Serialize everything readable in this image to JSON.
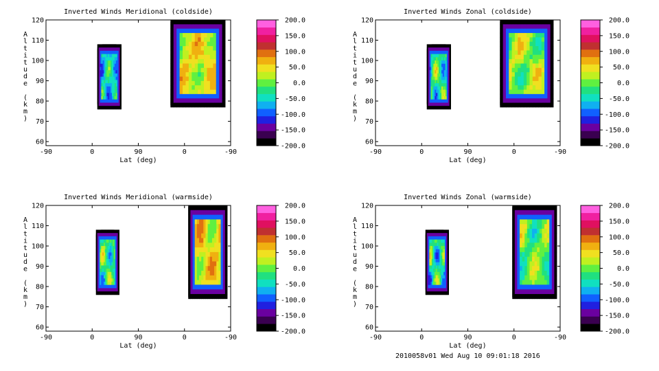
{
  "chart_data": [
    {
      "type": "heatmap",
      "title": "Inverted Winds Meridional (coldside)",
      "xlabel": "Lat (deg)",
      "ylabel": "Altitude (km)",
      "x_tick_labels": [
        "-90",
        "0",
        "90",
        "0",
        "-90"
      ],
      "ylim": [
        58,
        120
      ],
      "y_ticks": [
        60,
        70,
        80,
        90,
        100,
        110,
        120
      ],
      "colorbar_ticks": [
        200,
        150,
        100,
        50,
        0,
        -50,
        -100,
        -150,
        -200
      ],
      "colorbar_labels": [
        "200.0",
        "150.0",
        "100.0",
        "50.0",
        "0.0",
        "-50.0",
        "-100.0",
        "-150.0",
        "-200.0"
      ],
      "regions": [
        {
          "x_range": [
            -15,
            20
          ],
          "alt_range": [
            76,
            108
          ],
          "mean": -100,
          "peak": 10
        },
        {
          "x_range": [
            92,
            172
          ],
          "alt_range": [
            77,
            120
          ],
          "mean": 10,
          "peak": 75
        }
      ]
    },
    {
      "type": "heatmap",
      "title": "Inverted Winds Zonal (coldside)",
      "xlabel": "Lat (deg)",
      "ylabel": "Altitude (km)",
      "x_tick_labels": [
        "-90",
        "0",
        "90",
        "0",
        "-90"
      ],
      "ylim": [
        58,
        120
      ],
      "y_ticks": [
        60,
        70,
        80,
        90,
        100,
        110,
        120
      ],
      "colorbar_ticks": [
        200,
        150,
        100,
        50,
        0,
        -50,
        -100,
        -150,
        -200
      ],
      "colorbar_labels": [
        "200.0",
        "150.0",
        "100.0",
        "50.0",
        "0.0",
        "-50.0",
        "-100.0",
        "-150.0",
        "-200.0"
      ],
      "regions": [
        {
          "x_range": [
            -15,
            20
          ],
          "alt_range": [
            76,
            108
          ],
          "mean": -90,
          "peak": 50
        },
        {
          "x_range": [
            92,
            170
          ],
          "alt_range": [
            77,
            120
          ],
          "mean": -30,
          "peak": 60
        }
      ]
    },
    {
      "type": "heatmap",
      "title": "Inverted Winds Meridional (warmside)",
      "xlabel": "Lat (deg)",
      "ylabel": "Altitude (km)",
      "x_tick_labels": [
        "-90",
        "0",
        "90",
        "0",
        "-90"
      ],
      "ylim": [
        58,
        120
      ],
      "y_ticks": [
        60,
        70,
        80,
        90,
        100,
        110,
        120
      ],
      "colorbar_ticks": [
        200,
        150,
        100,
        50,
        0,
        -50,
        -100,
        -150,
        -200
      ],
      "colorbar_labels": [
        "200.0",
        "150.0",
        "100.0",
        "50.0",
        "0.0",
        "-50.0",
        "-100.0",
        "-150.0",
        "-200.0"
      ],
      "regions": [
        {
          "x_range": [
            -17,
            17
          ],
          "alt_range": [
            76,
            108
          ],
          "mean": -80,
          "peak": 50
        },
        {
          "x_range": [
            118,
            175
          ],
          "alt_range": [
            74,
            120
          ],
          "mean": 10,
          "peak": 90
        }
      ]
    },
    {
      "type": "heatmap",
      "title": "Inverted Winds Zonal (warmside)",
      "xlabel": "Lat (deg)",
      "ylabel": "Altitude (km)",
      "x_tick_labels": [
        "-90",
        "0",
        "90",
        "0",
        "-90"
      ],
      "ylim": [
        58,
        120
      ],
      "y_ticks": [
        60,
        70,
        80,
        90,
        100,
        110,
        120
      ],
      "colorbar_ticks": [
        200,
        150,
        100,
        50,
        0,
        -50,
        -100,
        -150,
        -200
      ],
      "colorbar_labels": [
        "200.0",
        "150.0",
        "100.0",
        "50.0",
        "0.0",
        "-50.0",
        "-100.0",
        "-150.0",
        "-200.0"
      ],
      "regions": [
        {
          "x_range": [
            -17,
            17
          ],
          "alt_range": [
            76,
            108
          ],
          "mean": -100,
          "peak": 50
        },
        {
          "x_range": [
            110,
            175
          ],
          "alt_range": [
            74,
            120
          ],
          "mean": -40,
          "peak": 40
        }
      ]
    }
  ],
  "colors": {
    "palette": [
      "#000000",
      "#3a0050",
      "#6a00a0",
      "#2020e0",
      "#1060ff",
      "#10b0f0",
      "#10e0c0",
      "#20e080",
      "#60f040",
      "#c0f020",
      "#f0e020",
      "#f0b010",
      "#e07010",
      "#c03030",
      "#e01060",
      "#f020a0",
      "#ff60e0"
    ]
  },
  "footer": "2010058v01 Wed Aug 10 09:01:18 2016"
}
